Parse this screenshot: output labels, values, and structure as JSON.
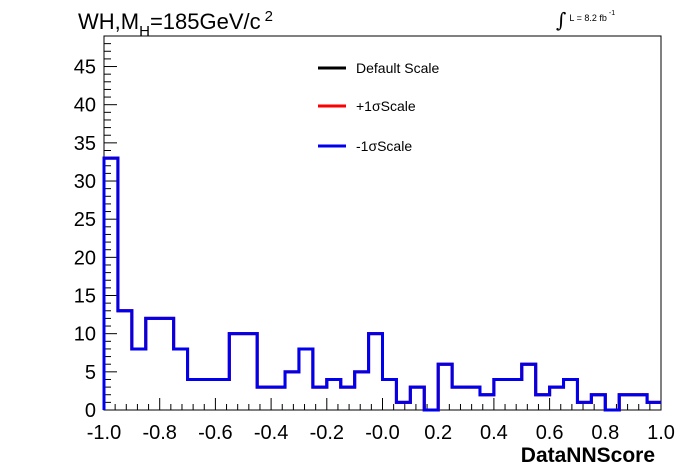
{
  "title": {
    "prefix": "WH,M",
    "sub": "H",
    "mid": "=185GeV/c",
    "sup": "2"
  },
  "lumi": {
    "symbol": "∫",
    "text": "L = 8.2 fb",
    "sup": "-1"
  },
  "chart_data": {
    "type": "histogram-step",
    "xlabel": "DataNNScore",
    "ylabel": "",
    "xlim": [
      -1.0,
      1.0
    ],
    "ylim": [
      0,
      49
    ],
    "xticks": [
      "-1.0",
      "-0.8",
      "-0.6",
      "-0.4",
      "-0.2",
      "-0.0",
      "0.2",
      "0.4",
      "0.6",
      "0.8",
      "1.0"
    ],
    "yticks": [
      "0",
      "5",
      "10",
      "15",
      "20",
      "25",
      "30",
      "35",
      "40",
      "45"
    ],
    "bin_edges": [
      -1.0,
      -0.95,
      -0.9,
      -0.85,
      -0.75,
      -0.7,
      -0.55,
      -0.45,
      -0.35,
      -0.3,
      -0.25,
      -0.2,
      -0.15,
      -0.1,
      -0.05,
      0.0,
      0.05,
      0.1,
      0.15,
      0.2,
      0.25,
      0.35,
      0.4,
      0.5,
      0.55,
      0.6,
      0.65,
      0.7,
      0.75,
      0.8,
      0.85,
      0.95,
      1.0
    ],
    "legend_position": "top-center",
    "series": [
      {
        "name": "Default Scale",
        "color": "#000000",
        "values": [
          33,
          13,
          8,
          12,
          8,
          4,
          10,
          3,
          5,
          8,
          3,
          4,
          3,
          5,
          10,
          4,
          1,
          3,
          0,
          6,
          3,
          2,
          4,
          6,
          2,
          3,
          4,
          1,
          2,
          0,
          2,
          1
        ]
      },
      {
        "name": "+1σScale",
        "color": "#ff0000",
        "values": [
          33,
          13,
          8,
          12,
          8,
          4,
          10,
          3,
          5,
          8,
          3,
          4,
          3,
          5,
          10,
          4,
          1,
          3,
          0,
          6,
          3,
          2,
          4,
          6,
          2,
          3,
          4,
          1,
          2,
          0,
          2,
          1
        ]
      },
      {
        "name": "-1σScale",
        "color": "#0000ee",
        "values": [
          33,
          13,
          8,
          12,
          8,
          4,
          10,
          3,
          5,
          8,
          3,
          4,
          3,
          5,
          10,
          4,
          1,
          3,
          0,
          6,
          3,
          2,
          4,
          6,
          2,
          3,
          4,
          1,
          2,
          0,
          2,
          1
        ]
      }
    ]
  }
}
